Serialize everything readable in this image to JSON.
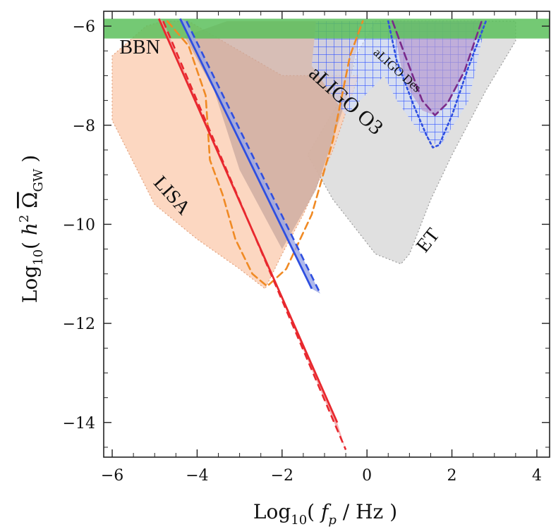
{
  "chart_data": {
    "type": "area",
    "xlabel": "Log10( fp / Hz )",
    "ylabel": "Log10( h² Ω̄GW )",
    "xlim": [
      -6.2,
      4.3
    ],
    "ylim": [
      -14.7,
      -5.7
    ],
    "x_ticks": [
      -6,
      -4,
      -2,
      0,
      2,
      4
    ],
    "y_ticks": [
      -6,
      -8,
      -10,
      -12,
      -14
    ],
    "grid": false,
    "colors": {
      "bbn": "#5cbf5c",
      "lisa": "#fbd0b6",
      "lisa_dashed": "#f08a24",
      "aligo_o3": "#c9a89d",
      "et": "#e0e0e0",
      "grid_hatch": "#3355ff",
      "aligo_des": "#7a2a8a",
      "red": "#e8282e",
      "blue": "#2f4fe0"
    },
    "regions": [
      {
        "name": "BBN",
        "label": "BBN",
        "ybounds": [
          -6.25,
          -5.85
        ]
      },
      {
        "name": "LISA",
        "label": "LISA",
        "points": [
          [
            -4.8,
            -5.9
          ],
          [
            -4.2,
            -5.9
          ],
          [
            -3.0,
            -6.5
          ],
          [
            -2.0,
            -7.0
          ],
          [
            -0.2,
            -7.0
          ],
          [
            -0.8,
            -8.5
          ],
          [
            -1.5,
            -9.8
          ],
          [
            -2.0,
            -10.6
          ],
          [
            -2.4,
            -11.3
          ],
          [
            -3.0,
            -10.9
          ],
          [
            -4.0,
            -10.3
          ],
          [
            -5.0,
            -9.6
          ],
          [
            -6.0,
            -7.9
          ],
          [
            -6.0,
            -6.6
          ],
          [
            -5.2,
            -6.0
          ]
        ]
      },
      {
        "name": "aLIGO O3",
        "label": "aLIGO O3",
        "points": [
          [
            -3.3,
            -5.9
          ],
          [
            -0.1,
            -5.9
          ],
          [
            -0.5,
            -7.5
          ],
          [
            -1.2,
            -9.3
          ],
          [
            -2.0,
            -10.5
          ],
          [
            -3.0,
            -8.9
          ],
          [
            -3.6,
            -7.3
          ],
          [
            -4.3,
            -6.2
          ]
        ]
      },
      {
        "name": "ET",
        "label": "ET",
        "points": [
          [
            0.2,
            -5.9
          ],
          [
            3.5,
            -5.9
          ],
          [
            3.5,
            -6.3
          ],
          [
            2.8,
            -7.3
          ],
          [
            2.0,
            -8.6
          ],
          [
            1.5,
            -9.5
          ],
          [
            1.0,
            -10.6
          ],
          [
            0.8,
            -10.8
          ],
          [
            0.2,
            -10.6
          ],
          [
            -0.8,
            -9.5
          ],
          [
            -1.4,
            -8.6
          ],
          [
            -0.5,
            -7.3
          ],
          [
            -0.2,
            -6.5
          ]
        ]
      },
      {
        "name": "aLIGO grid",
        "points": [
          [
            -1.2,
            -5.9
          ],
          [
            2.8,
            -5.9
          ],
          [
            2.4,
            -7.5
          ],
          [
            1.7,
            -8.45
          ],
          [
            1.2,
            -8.1
          ],
          [
            0.7,
            -7.5
          ],
          [
            0.4,
            -7.0
          ],
          [
            -0.5,
            -7.8
          ],
          [
            -1.3,
            -6.8
          ]
        ]
      },
      {
        "name": "aLIGO Des",
        "label": "aLIGO Des",
        "points": [
          [
            0.6,
            -5.9
          ],
          [
            2.7,
            -5.9
          ],
          [
            2.3,
            -6.9
          ],
          [
            1.9,
            -7.55
          ],
          [
            1.6,
            -7.8
          ],
          [
            1.3,
            -7.7
          ],
          [
            1.0,
            -7.3
          ],
          [
            0.8,
            -6.8
          ]
        ]
      }
    ],
    "curves": [
      {
        "name": "lisa-dashed",
        "style": "dashed",
        "color": "#f08a24",
        "points": [
          [
            -4.7,
            -5.9
          ],
          [
            -4.2,
            -6.4
          ],
          [
            -3.8,
            -7.4
          ],
          [
            -3.7,
            -8.7
          ],
          [
            -3.4,
            -9.4
          ],
          [
            -3.1,
            -10.3
          ],
          [
            -2.7,
            -11.0
          ],
          [
            -2.35,
            -11.25
          ],
          [
            -1.9,
            -10.9
          ],
          [
            -1.3,
            -9.8
          ],
          [
            -0.8,
            -8.3
          ],
          [
            -0.4,
            -6.6
          ],
          [
            -0.1,
            -5.9
          ]
        ]
      },
      {
        "name": "aligo-o3-dashed-blue",
        "style": "dotted",
        "color": "#2f4fe0",
        "points": [
          [
            0.5,
            -5.9
          ],
          [
            0.7,
            -6.7
          ],
          [
            1.1,
            -7.6
          ],
          [
            1.4,
            -8.2
          ],
          [
            1.55,
            -8.45
          ],
          [
            1.7,
            -8.4
          ],
          [
            2.0,
            -7.8
          ],
          [
            2.4,
            -6.8
          ],
          [
            2.8,
            -5.9
          ]
        ]
      },
      {
        "name": "aligo-des-dashed",
        "style": "dashed",
        "color": "#7a2a8a",
        "points": [
          [
            0.6,
            -5.9
          ],
          [
            0.9,
            -6.6
          ],
          [
            1.3,
            -7.5
          ],
          [
            1.6,
            -7.8
          ],
          [
            1.9,
            -7.55
          ],
          [
            2.3,
            -6.9
          ],
          [
            2.7,
            -5.9
          ]
        ]
      }
    ],
    "bands": [
      {
        "name": "red-band",
        "color": "#e8282e",
        "fill": "#f3a0a2",
        "solid": [
          [
            -4.9,
            -5.85
          ],
          [
            -0.7,
            -14.0
          ]
        ],
        "dashed": [
          [
            -4.8,
            -5.9
          ],
          [
            -0.5,
            -14.55
          ]
        ]
      },
      {
        "name": "blue-band",
        "color": "#2f4fe0",
        "fill": "#9aa6e6",
        "solid": [
          [
            -4.4,
            -5.85
          ],
          [
            -1.3,
            -11.3
          ]
        ],
        "dashed": [
          [
            -4.25,
            -5.9
          ],
          [
            -1.1,
            -11.4
          ]
        ]
      }
    ],
    "labels": {
      "bbn": "BBN",
      "lisa": "LISA",
      "aligo_o3": "aLIGO O3",
      "aligo_des": "aLIGO Des",
      "et": "ET"
    }
  }
}
